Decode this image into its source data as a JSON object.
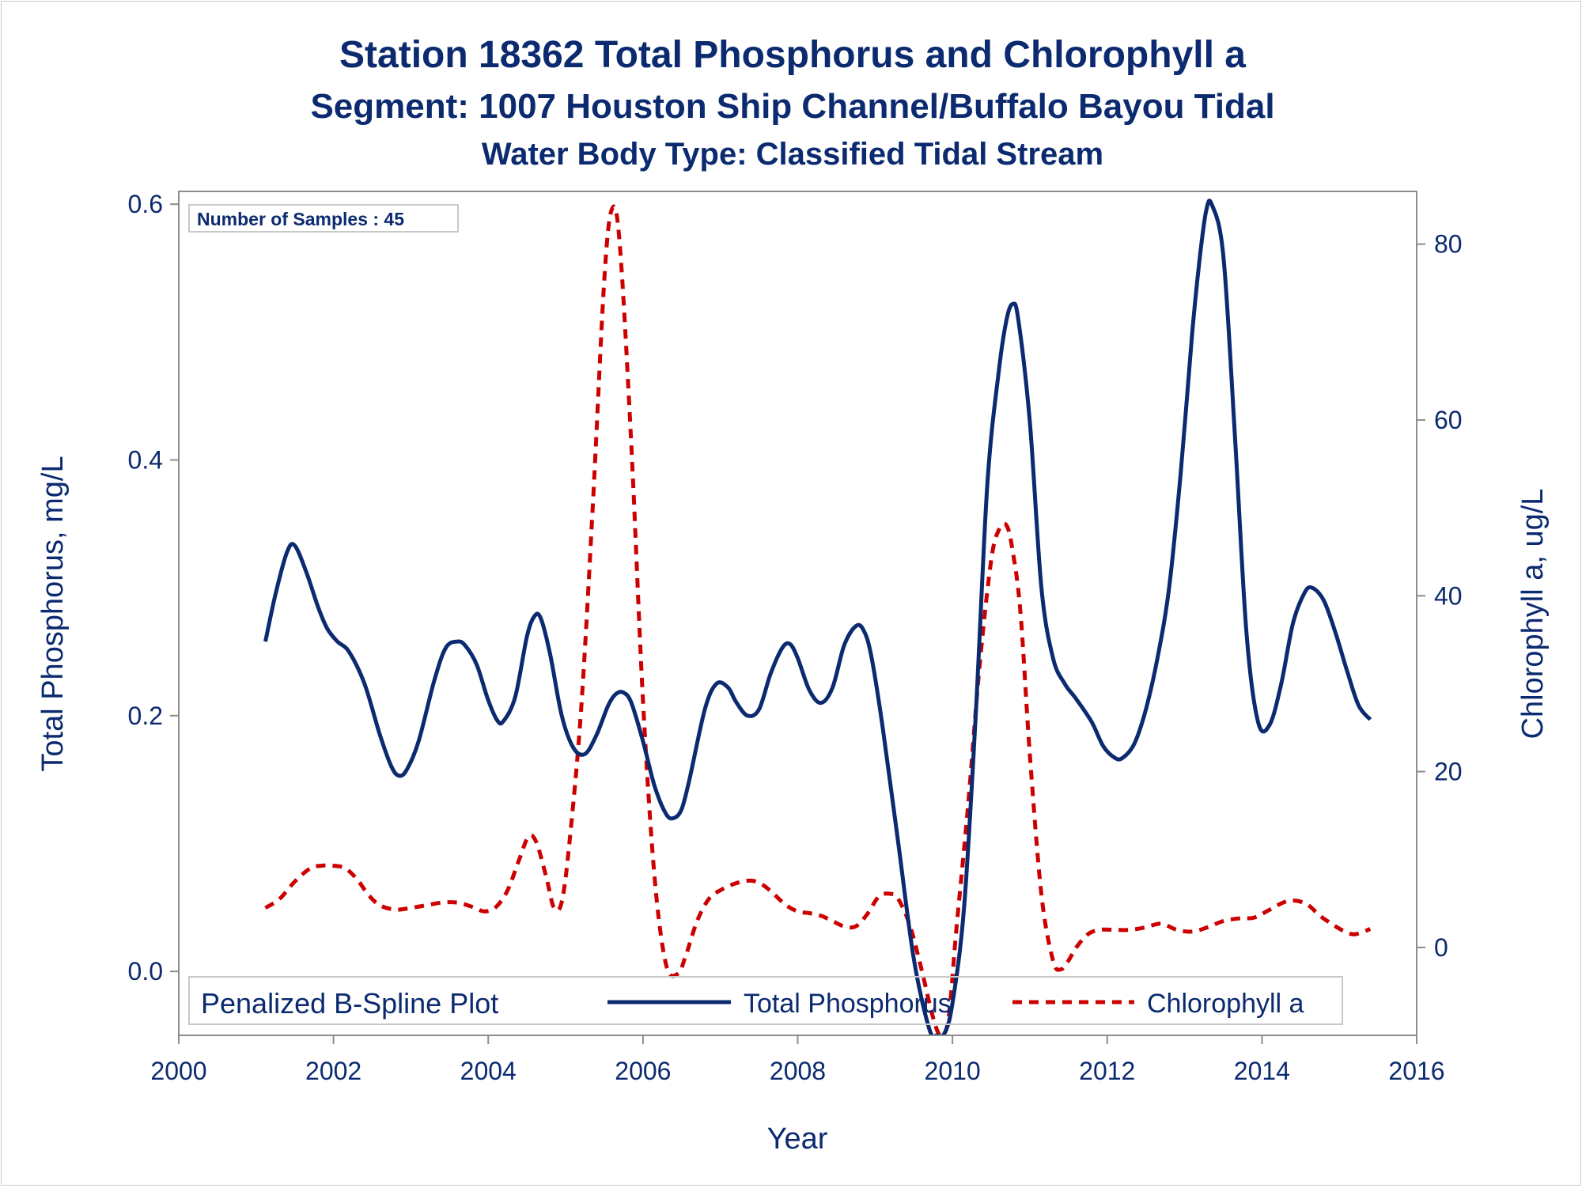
{
  "chart_data": {
    "type": "line",
    "title": "Station 18362  Total Phosphorus and Chlorophyll a",
    "subtitle": "Segment: 1007  Houston Ship Channel/Buffalo Bayou Tidal",
    "subtitle2": "Water Body Type: Classified Tidal Stream",
    "xlabel": "Year",
    "ylabel": "Total Phosphorus, mg/L",
    "y2label": "Chlorophyll a, ug/L",
    "xlim": [
      2000,
      2016
    ],
    "ylim": [
      -0.05,
      0.61
    ],
    "y2lim": [
      -10,
      86
    ],
    "xticks": [
      2000,
      2002,
      2004,
      2006,
      2008,
      2010,
      2012,
      2014,
      2016
    ],
    "yticks": [
      0.0,
      0.2,
      0.4,
      0.6
    ],
    "y2ticks": [
      0,
      20,
      40,
      60,
      80
    ],
    "grid": false,
    "inset_label": "Number of Samples : 45",
    "legend": {
      "title": "Penalized B-Spline Plot",
      "placement": "bottom-inside",
      "entries": [
        "Total Phosphorus",
        "Chlorophyll a"
      ]
    },
    "series": [
      {
        "name": "Total Phosphorus",
        "axis": "left",
        "color": "#0b2a6f",
        "style": "solid",
        "x": [
          2001.12,
          2001.25,
          2001.4,
          2001.5,
          2001.65,
          2001.8,
          2001.92,
          2002.05,
          2002.2,
          2002.4,
          2002.6,
          2002.75,
          2002.85,
          2002.95,
          2003.1,
          2003.3,
          2003.45,
          2003.6,
          2003.7,
          2003.85,
          2004.0,
          2004.12,
          2004.2,
          2004.35,
          2004.5,
          2004.6,
          2004.68,
          2004.8,
          2004.95,
          2005.1,
          2005.25,
          2005.4,
          2005.55,
          2005.65,
          2005.75,
          2005.85,
          2006.0,
          2006.15,
          2006.3,
          2006.4,
          2006.5,
          2006.6,
          2006.8,
          2006.95,
          2007.1,
          2007.2,
          2007.35,
          2007.5,
          2007.65,
          2007.8,
          2007.9,
          2008.0,
          2008.15,
          2008.3,
          2008.45,
          2008.6,
          2008.75,
          2008.85,
          2008.95,
          2009.1,
          2009.3,
          2009.5,
          2009.7,
          2009.8,
          2009.9,
          2010.0,
          2010.15,
          2010.3,
          2010.45,
          2010.6,
          2010.7,
          2010.78,
          2010.85,
          2011.0,
          2011.15,
          2011.3,
          2011.45,
          2011.6,
          2011.8,
          2011.95,
          2012.1,
          2012.2,
          2012.35,
          2012.5,
          2012.65,
          2012.8,
          2012.95,
          2013.1,
          2013.2,
          2013.28,
          2013.35,
          2013.5,
          2013.65,
          2013.8,
          2013.95,
          2014.1,
          2014.25,
          2014.4,
          2014.55,
          2014.65,
          2014.8,
          2014.95,
          2015.1,
          2015.25,
          2015.4
        ],
        "values": [
          0.258,
          0.295,
          0.328,
          0.333,
          0.312,
          0.285,
          0.268,
          0.258,
          0.25,
          0.225,
          0.185,
          0.16,
          0.153,
          0.158,
          0.18,
          0.227,
          0.253,
          0.258,
          0.255,
          0.24,
          0.212,
          0.196,
          0.196,
          0.215,
          0.262,
          0.278,
          0.276,
          0.248,
          0.2,
          0.175,
          0.17,
          0.185,
          0.208,
          0.217,
          0.218,
          0.21,
          0.18,
          0.145,
          0.123,
          0.12,
          0.127,
          0.15,
          0.205,
          0.225,
          0.222,
          0.211,
          0.2,
          0.205,
          0.233,
          0.253,
          0.256,
          0.245,
          0.22,
          0.21,
          0.222,
          0.255,
          0.27,
          0.267,
          0.247,
          0.19,
          0.1,
          0.01,
          -0.045,
          -0.05,
          -0.048,
          -0.025,
          0.05,
          0.2,
          0.38,
          0.47,
          0.51,
          0.522,
          0.51,
          0.43,
          0.3,
          0.245,
          0.225,
          0.213,
          0.195,
          0.176,
          0.167,
          0.167,
          0.178,
          0.205,
          0.245,
          0.3,
          0.39,
          0.5,
          0.56,
          0.595,
          0.6,
          0.56,
          0.42,
          0.265,
          0.195,
          0.193,
          0.225,
          0.272,
          0.296,
          0.3,
          0.29,
          0.265,
          0.235,
          0.208,
          0.197
        ]
      },
      {
        "name": "Chlorophyll a",
        "axis": "right",
        "color": "#cc0000",
        "style": "dashed",
        "x": [
          2001.12,
          2001.3,
          2001.5,
          2001.7,
          2001.85,
          2002.0,
          2002.15,
          2002.3,
          2002.45,
          2002.6,
          2002.8,
          2003.0,
          2003.2,
          2003.4,
          2003.6,
          2003.8,
          2003.95,
          2004.1,
          2004.25,
          2004.4,
          2004.52,
          2004.62,
          2004.75,
          2004.85,
          2004.95,
          2005.05,
          2005.2,
          2005.35,
          2005.5,
          2005.6,
          2005.7,
          2005.85,
          2006.0,
          2006.15,
          2006.3,
          2006.45,
          2006.55,
          2006.7,
          2006.85,
          2007.0,
          2007.2,
          2007.4,
          2007.55,
          2007.7,
          2007.85,
          2008.0,
          2008.15,
          2008.3,
          2008.45,
          2008.6,
          2008.75,
          2008.9,
          2009.05,
          2009.2,
          2009.3,
          2009.45,
          2009.6,
          2009.75,
          2009.85,
          2009.95,
          2010.05,
          2010.2,
          2010.35,
          2010.5,
          2010.6,
          2010.7,
          2010.78,
          2010.88,
          2011.0,
          2011.15,
          2011.3,
          2011.4,
          2011.5,
          2011.6,
          2011.75,
          2011.9,
          2012.1,
          2012.3,
          2012.5,
          2012.7,
          2012.9,
          2013.1,
          2013.3,
          2013.5,
          2013.7,
          2013.9,
          2014.1,
          2014.3,
          2014.45,
          2014.6,
          2014.75,
          2014.9,
          2015.05,
          2015.2,
          2015.4
        ],
        "values": [
          4.5,
          5.5,
          7.5,
          9,
          9.3,
          9.3,
          9,
          7.8,
          6,
          4.8,
          4.3,
          4.5,
          4.8,
          5.1,
          5.1,
          4.6,
          4.1,
          4.6,
          6.5,
          10,
          12.6,
          12,
          8,
          4.5,
          5.2,
          12,
          27,
          50,
          76,
          84,
          80,
          57,
          28,
          8,
          -2,
          -3,
          -1,
          3,
          5.5,
          6.5,
          7.3,
          7.6,
          7.1,
          6,
          4.8,
          4.1,
          3.9,
          3.6,
          3,
          2.4,
          2.4,
          3.8,
          5.8,
          6.1,
          5.5,
          2.5,
          -2.5,
          -8,
          -10,
          -8,
          2,
          16,
          32,
          44,
          47.5,
          48,
          45,
          38,
          22,
          6,
          -1.5,
          -2.5,
          -1.5,
          0,
          1.5,
          2,
          2,
          2,
          2.3,
          2.7,
          2,
          1.8,
          2.3,
          3,
          3.3,
          3.4,
          4.3,
          5.2,
          5.3,
          4.8,
          3.6,
          2.7,
          1.9,
          1.5,
          2.1
        ]
      }
    ]
  }
}
